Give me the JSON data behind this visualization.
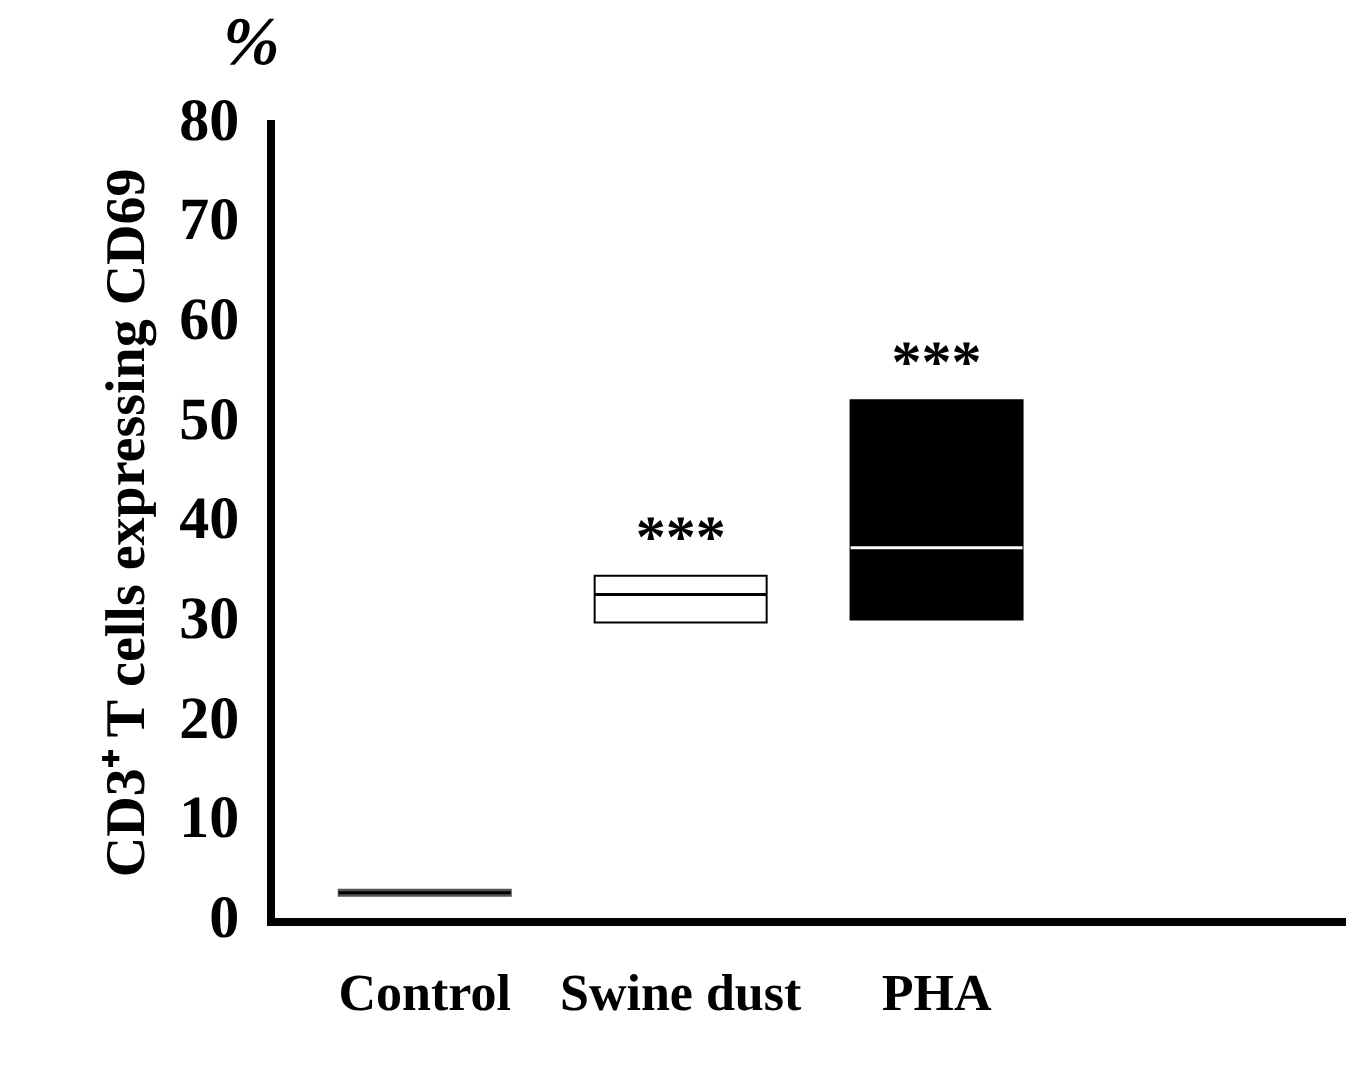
{
  "chart_data": {
    "type": "box",
    "ylabel": "CD3⁺ T cells expressing CD69",
    "categories": [
      "Control",
      "Swine dust",
      "PHA"
    ],
    "boxes": [
      {
        "low": 2.6,
        "q1": 2.6,
        "median": 2.9,
        "q3": 3.2,
        "high": 3.2
      },
      {
        "low": 30,
        "q1": 30,
        "median": 32.8,
        "q3": 34.7,
        "high": 34.7
      },
      {
        "low": 30.3,
        "q1": 30.3,
        "median": 37.5,
        "q3": 52.3,
        "high": 52.3
      }
    ],
    "colors": [
      "#555555",
      "#ffffff",
      "#000000"
    ],
    "ylim": [
      0,
      80
    ],
    "yticks": [
      0,
      10,
      20,
      30,
      40,
      50,
      60,
      70,
      80
    ],
    "grid": false,
    "annotations": [
      "%",
      {
        "text": "***",
        "x": "Swine dust",
        "y": 34.7
      },
      {
        "text": "***",
        "x": "PHA",
        "y": 52.3
      }
    ]
  }
}
